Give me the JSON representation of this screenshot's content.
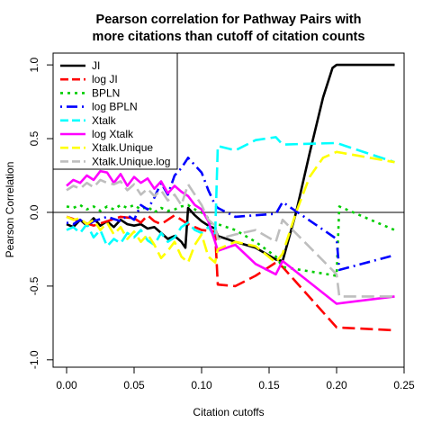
{
  "chart_data": {
    "type": "line",
    "title_line1": "Pearson correlation for Pathway Pairs with",
    "title_line2": "more citations than cutoff of citation counts",
    "xlabel": "Citation cutoffs",
    "ylabel": "Pearson Correlation",
    "xlim": [
      -0.01,
      0.25
    ],
    "ylim": [
      -1.05,
      1.08
    ],
    "x_ticks": [
      0.0,
      0.05,
      0.1,
      0.15,
      0.2,
      0.25
    ],
    "x_tick_labels": [
      "0.00",
      "0.05",
      "0.10",
      "0.15",
      "0.20",
      "0.25"
    ],
    "y_ticks": [
      -1.0,
      -0.5,
      0.0,
      0.5,
      1.0
    ],
    "y_tick_labels": [
      "-1.0",
      "-0.5",
      "0.0",
      "0.5",
      "1.0"
    ],
    "reference_line_y": 0.0,
    "legend_position": "top-left",
    "series": [
      {
        "name": "JI",
        "color": "#000000",
        "dash": "solid",
        "width": 2.6,
        "points": [
          [
            0.0,
            -0.08
          ],
          [
            0.005,
            -0.1
          ],
          [
            0.01,
            -0.05
          ],
          [
            0.015,
            -0.09
          ],
          [
            0.02,
            -0.04
          ],
          [
            0.025,
            -0.09
          ],
          [
            0.03,
            -0.06
          ],
          [
            0.035,
            -0.1
          ],
          [
            0.04,
            -0.05
          ],
          [
            0.045,
            -0.08
          ],
          [
            0.05,
            -0.09
          ],
          [
            0.055,
            -0.08
          ],
          [
            0.06,
            -0.11
          ],
          [
            0.065,
            -0.1
          ],
          [
            0.07,
            -0.14
          ],
          [
            0.075,
            -0.18
          ],
          [
            0.08,
            -0.16
          ],
          [
            0.085,
            -0.2
          ],
          [
            0.088,
            -0.24
          ],
          [
            0.09,
            0.03
          ],
          [
            0.095,
            -0.02
          ],
          [
            0.1,
            -0.06
          ],
          [
            0.105,
            -0.09
          ],
          [
            0.11,
            -0.11
          ],
          [
            0.112,
            -0.16
          ],
          [
            0.125,
            -0.2
          ],
          [
            0.14,
            -0.24
          ],
          [
            0.155,
            -0.32
          ],
          [
            0.16,
            -0.33
          ],
          [
            0.17,
            0.0
          ],
          [
            0.18,
            0.4
          ],
          [
            0.19,
            0.78
          ],
          [
            0.197,
            0.98
          ],
          [
            0.2,
            1.0
          ],
          [
            0.243,
            1.0
          ]
        ]
      },
      {
        "name": "log JI",
        "color": "#ff0000",
        "dash": "longdash",
        "width": 2.6,
        "points": [
          [
            0.0,
            -0.03
          ],
          [
            0.01,
            -0.06
          ],
          [
            0.02,
            -0.09
          ],
          [
            0.03,
            -0.06
          ],
          [
            0.04,
            -0.03
          ],
          [
            0.05,
            -0.04
          ],
          [
            0.055,
            -0.07
          ],
          [
            0.06,
            -0.02
          ],
          [
            0.065,
            -0.06
          ],
          [
            0.07,
            -0.08
          ],
          [
            0.075,
            -0.05
          ],
          [
            0.08,
            -0.02
          ],
          [
            0.085,
            -0.05
          ],
          [
            0.09,
            -0.08
          ],
          [
            0.1,
            -0.12
          ],
          [
            0.11,
            -0.13
          ],
          [
            0.112,
            -0.49
          ],
          [
            0.125,
            -0.5
          ],
          [
            0.14,
            -0.43
          ],
          [
            0.155,
            -0.34
          ],
          [
            0.16,
            -0.37
          ],
          [
            0.2,
            -0.78
          ],
          [
            0.243,
            -0.8
          ]
        ]
      },
      {
        "name": "BPLN",
        "color": "#00cd00",
        "dash": "dotted",
        "width": 2.6,
        "points": [
          [
            0.0,
            0.04
          ],
          [
            0.005,
            0.03
          ],
          [
            0.01,
            0.05
          ],
          [
            0.015,
            0.02
          ],
          [
            0.02,
            0.04
          ],
          [
            0.025,
            0.01
          ],
          [
            0.03,
            0.04
          ],
          [
            0.035,
            0.02
          ],
          [
            0.04,
            0.05
          ],
          [
            0.045,
            0.03
          ],
          [
            0.05,
            0.05
          ],
          [
            0.055,
            0.02
          ],
          [
            0.06,
            0.04
          ],
          [
            0.065,
            0.0
          ],
          [
            0.07,
            0.03
          ],
          [
            0.075,
            0.01
          ],
          [
            0.08,
            0.02
          ],
          [
            0.085,
            0.04
          ],
          [
            0.09,
            0.05
          ],
          [
            0.095,
            0.02
          ],
          [
            0.1,
            0.0
          ],
          [
            0.105,
            -0.04
          ],
          [
            0.11,
            -0.11
          ],
          [
            0.112,
            -0.08
          ],
          [
            0.125,
            -0.12
          ],
          [
            0.14,
            -0.2
          ],
          [
            0.155,
            -0.3
          ],
          [
            0.16,
            -0.37
          ],
          [
            0.2,
            -0.43
          ],
          [
            0.202,
            0.04
          ],
          [
            0.243,
            -0.12
          ]
        ]
      },
      {
        "name": "log BPLN",
        "color": "#0000ff",
        "dash": "dotdash",
        "width": 2.6,
        "points": [
          [
            0.0,
            -0.07
          ],
          [
            0.005,
            -0.08
          ],
          [
            0.01,
            -0.05
          ],
          [
            0.015,
            -0.09
          ],
          [
            0.02,
            -0.06
          ],
          [
            0.03,
            -0.03
          ],
          [
            0.04,
            -0.06
          ],
          [
            0.045,
            -0.02
          ],
          [
            0.05,
            -0.05
          ],
          [
            0.055,
            0.05
          ],
          [
            0.06,
            0.02
          ],
          [
            0.065,
            0.1
          ],
          [
            0.07,
            0.2
          ],
          [
            0.075,
            0.12
          ],
          [
            0.08,
            0.25
          ],
          [
            0.085,
            0.3
          ],
          [
            0.09,
            0.37
          ],
          [
            0.095,
            0.32
          ],
          [
            0.1,
            0.27
          ],
          [
            0.105,
            0.15
          ],
          [
            0.11,
            0.05
          ],
          [
            0.112,
            0.03
          ],
          [
            0.125,
            -0.03
          ],
          [
            0.14,
            -0.02
          ],
          [
            0.155,
            -0.01
          ],
          [
            0.16,
            0.07
          ],
          [
            0.2,
            -0.18
          ],
          [
            0.202,
            -0.39
          ],
          [
            0.243,
            -0.29
          ]
        ]
      },
      {
        "name": "Xtalk",
        "color": "#00ffff",
        "dash": "longdash",
        "width": 2.6,
        "points": [
          [
            0.0,
            -0.12
          ],
          [
            0.005,
            -0.1
          ],
          [
            0.01,
            -0.14
          ],
          [
            0.015,
            -0.08
          ],
          [
            0.02,
            -0.17
          ],
          [
            0.025,
            -0.12
          ],
          [
            0.03,
            -0.23
          ],
          [
            0.035,
            -0.18
          ],
          [
            0.04,
            -0.21
          ],
          [
            0.045,
            -0.14
          ],
          [
            0.05,
            -0.17
          ],
          [
            0.055,
            -0.12
          ],
          [
            0.06,
            -0.19
          ],
          [
            0.065,
            -0.22
          ],
          [
            0.07,
            -0.14
          ],
          [
            0.075,
            -0.2
          ],
          [
            0.08,
            -0.17
          ],
          [
            0.085,
            -0.1
          ],
          [
            0.09,
            -0.07
          ],
          [
            0.095,
            -0.12
          ],
          [
            0.1,
            -0.14
          ],
          [
            0.105,
            -0.1
          ],
          [
            0.11,
            -0.17
          ],
          [
            0.112,
            0.45
          ],
          [
            0.125,
            0.42
          ],
          [
            0.14,
            0.49
          ],
          [
            0.155,
            0.51
          ],
          [
            0.16,
            0.46
          ],
          [
            0.2,
            0.47
          ],
          [
            0.243,
            0.34
          ]
        ]
      },
      {
        "name": "log Xtalk",
        "color": "#ff00ff",
        "dash": "solid",
        "width": 2.6,
        "points": [
          [
            0.0,
            0.18
          ],
          [
            0.005,
            0.22
          ],
          [
            0.01,
            0.2
          ],
          [
            0.015,
            0.25
          ],
          [
            0.02,
            0.22
          ],
          [
            0.025,
            0.28
          ],
          [
            0.03,
            0.27
          ],
          [
            0.035,
            0.2
          ],
          [
            0.04,
            0.26
          ],
          [
            0.045,
            0.18
          ],
          [
            0.05,
            0.24
          ],
          [
            0.055,
            0.2
          ],
          [
            0.06,
            0.23
          ],
          [
            0.065,
            0.16
          ],
          [
            0.07,
            0.21
          ],
          [
            0.075,
            0.13
          ],
          [
            0.08,
            0.18
          ],
          [
            0.085,
            0.14
          ],
          [
            0.09,
            0.11
          ],
          [
            0.095,
            0.05
          ],
          [
            0.1,
            0.02
          ],
          [
            0.105,
            -0.06
          ],
          [
            0.11,
            -0.2
          ],
          [
            0.112,
            -0.26
          ],
          [
            0.125,
            -0.22
          ],
          [
            0.14,
            -0.35
          ],
          [
            0.155,
            -0.42
          ],
          [
            0.16,
            -0.33
          ],
          [
            0.2,
            -0.62
          ],
          [
            0.243,
            -0.57
          ]
        ]
      },
      {
        "name": "Xtalk.Unique",
        "color": "#ffff00",
        "dash": "longdash",
        "width": 2.6,
        "points": [
          [
            0.0,
            -0.03
          ],
          [
            0.005,
            -0.05
          ],
          [
            0.01,
            -0.04
          ],
          [
            0.015,
            -0.08
          ],
          [
            0.02,
            -0.05
          ],
          [
            0.025,
            -0.12
          ],
          [
            0.03,
            -0.07
          ],
          [
            0.035,
            -0.15
          ],
          [
            0.04,
            -0.1
          ],
          [
            0.045,
            -0.18
          ],
          [
            0.05,
            -0.13
          ],
          [
            0.055,
            -0.2
          ],
          [
            0.06,
            -0.15
          ],
          [
            0.065,
            -0.22
          ],
          [
            0.07,
            -0.31
          ],
          [
            0.075,
            -0.26
          ],
          [
            0.08,
            -0.2
          ],
          [
            0.085,
            -0.3
          ],
          [
            0.09,
            -0.34
          ],
          [
            0.095,
            -0.22
          ],
          [
            0.1,
            -0.15
          ],
          [
            0.105,
            -0.3
          ],
          [
            0.11,
            -0.34
          ],
          [
            0.112,
            -0.25
          ],
          [
            0.125,
            -0.2
          ],
          [
            0.14,
            -0.23
          ],
          [
            0.155,
            -0.34
          ],
          [
            0.16,
            -0.28
          ],
          [
            0.17,
            0.0
          ],
          [
            0.18,
            0.24
          ],
          [
            0.19,
            0.37
          ],
          [
            0.2,
            0.41
          ],
          [
            0.243,
            0.34
          ]
        ]
      },
      {
        "name": "Xtalk.Unique.log",
        "color": "#bebebe",
        "dash": "longdash",
        "width": 2.6,
        "points": [
          [
            0.0,
            0.15
          ],
          [
            0.005,
            0.18
          ],
          [
            0.01,
            0.16
          ],
          [
            0.015,
            0.2
          ],
          [
            0.02,
            0.17
          ],
          [
            0.025,
            0.22
          ],
          [
            0.03,
            0.2
          ],
          [
            0.035,
            0.19
          ],
          [
            0.04,
            0.21
          ],
          [
            0.045,
            0.15
          ],
          [
            0.05,
            0.19
          ],
          [
            0.055,
            0.12
          ],
          [
            0.06,
            0.16
          ],
          [
            0.065,
            0.11
          ],
          [
            0.07,
            0.15
          ],
          [
            0.075,
            0.08
          ],
          [
            0.08,
            0.12
          ],
          [
            0.085,
            0.05
          ],
          [
            0.09,
            0.19
          ],
          [
            0.095,
            0.12
          ],
          [
            0.1,
            0.05
          ],
          [
            0.105,
            -0.05
          ],
          [
            0.11,
            -0.09
          ],
          [
            0.112,
            -0.18
          ],
          [
            0.125,
            -0.15
          ],
          [
            0.14,
            -0.12
          ],
          [
            0.155,
            -0.2
          ],
          [
            0.16,
            -0.05
          ],
          [
            0.2,
            -0.42
          ],
          [
            0.202,
            -0.57
          ],
          [
            0.243,
            -0.57
          ]
        ]
      }
    ]
  }
}
